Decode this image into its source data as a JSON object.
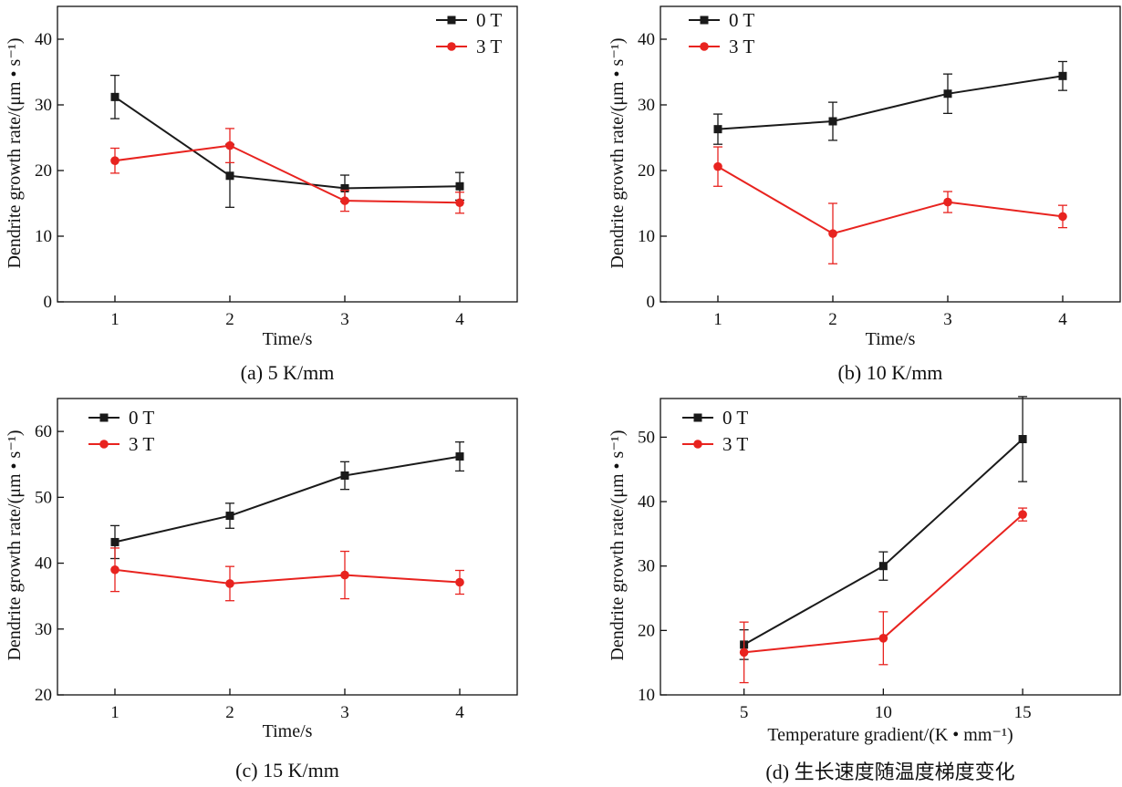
{
  "figure": {
    "ylabel": "Dendrite growth rate/(μm • s⁻¹)"
  },
  "colors": {
    "0 T": "#1a1a1a",
    "3 T": "#e8231f",
    "axis": "#111111"
  },
  "chart_data": [
    {
      "type": "line",
      "panel": "a",
      "caption": "(a) 5 K/mm",
      "xlabel": "Time/s",
      "ylabel": "Dendrite growth rate/(μm • s⁻¹)",
      "x": [
        1,
        2,
        3,
        4
      ],
      "xticks": [
        1,
        2,
        3,
        4
      ],
      "xlim": [
        0.5,
        4.5
      ],
      "ylim": [
        0,
        45
      ],
      "yticks": [
        0,
        10,
        20,
        30,
        40
      ],
      "legend": "top-right",
      "grid": false,
      "series": [
        {
          "name": "0 T",
          "marker": "square",
          "values": [
            31.2,
            19.2,
            17.3,
            17.6
          ],
          "errors": [
            3.3,
            4.8,
            2.0,
            2.1
          ]
        },
        {
          "name": "3 T",
          "marker": "circle",
          "values": [
            21.5,
            23.8,
            15.4,
            15.1
          ],
          "errors": [
            1.9,
            2.6,
            1.6,
            1.6
          ]
        }
      ]
    },
    {
      "type": "line",
      "panel": "b",
      "caption": "(b) 10 K/mm",
      "xlabel": "Time/s",
      "ylabel": "Dendrite growth rate/(μm • s⁻¹)",
      "x": [
        1,
        2,
        3,
        4
      ],
      "xticks": [
        1,
        2,
        3,
        4
      ],
      "xlim": [
        0.5,
        4.5
      ],
      "ylim": [
        0,
        45
      ],
      "yticks": [
        0,
        10,
        20,
        30,
        40
      ],
      "legend": "top-left",
      "grid": false,
      "series": [
        {
          "name": "0 T",
          "marker": "square",
          "values": [
            26.3,
            27.5,
            31.7,
            34.4
          ],
          "errors": [
            2.3,
            2.9,
            3.0,
            2.2
          ]
        },
        {
          "name": "3 T",
          "marker": "circle",
          "values": [
            20.6,
            10.4,
            15.2,
            13.0
          ],
          "errors": [
            3.0,
            4.6,
            1.6,
            1.7
          ]
        }
      ]
    },
    {
      "type": "line",
      "panel": "c",
      "caption": "(c) 15 K/mm",
      "xlabel": "Time/s",
      "ylabel": "Dendrite growth rate/(μm • s⁻¹)",
      "x": [
        1,
        2,
        3,
        4
      ],
      "xticks": [
        1,
        2,
        3,
        4
      ],
      "xlim": [
        0.5,
        4.5
      ],
      "ylim": [
        20,
        65
      ],
      "yticks": [
        20,
        30,
        40,
        50,
        60
      ],
      "legend": "top-left",
      "grid": false,
      "series": [
        {
          "name": "0 T",
          "marker": "square",
          "values": [
            43.2,
            47.2,
            53.3,
            56.2
          ],
          "errors": [
            2.5,
            1.9,
            2.1,
            2.2
          ]
        },
        {
          "name": "3 T",
          "marker": "circle",
          "values": [
            39.0,
            36.9,
            38.2,
            37.1
          ],
          "errors": [
            3.3,
            2.6,
            3.6,
            1.8
          ]
        }
      ]
    },
    {
      "type": "line",
      "panel": "d",
      "caption": "(d) 生长速度随温度梯度变化",
      "xlabel": "Temperature gradient/(K • mm⁻¹)",
      "ylabel": "Dendrite growth rate/(μm • s⁻¹)",
      "x": [
        5,
        10,
        15
      ],
      "xticks": [
        5,
        10,
        15
      ],
      "xlim": [
        2,
        18.5
      ],
      "ylim": [
        10,
        56
      ],
      "yticks": [
        10,
        20,
        30,
        40,
        50
      ],
      "legend": "top-left",
      "grid": false,
      "series": [
        {
          "name": "0 T",
          "marker": "square",
          "values": [
            17.8,
            30.0,
            49.7
          ],
          "errors": [
            2.3,
            2.2,
            6.6
          ]
        },
        {
          "name": "3 T",
          "marker": "circle",
          "values": [
            16.6,
            18.8,
            38.0
          ],
          "errors": [
            4.7,
            4.1,
            1.0
          ]
        }
      ]
    }
  ]
}
